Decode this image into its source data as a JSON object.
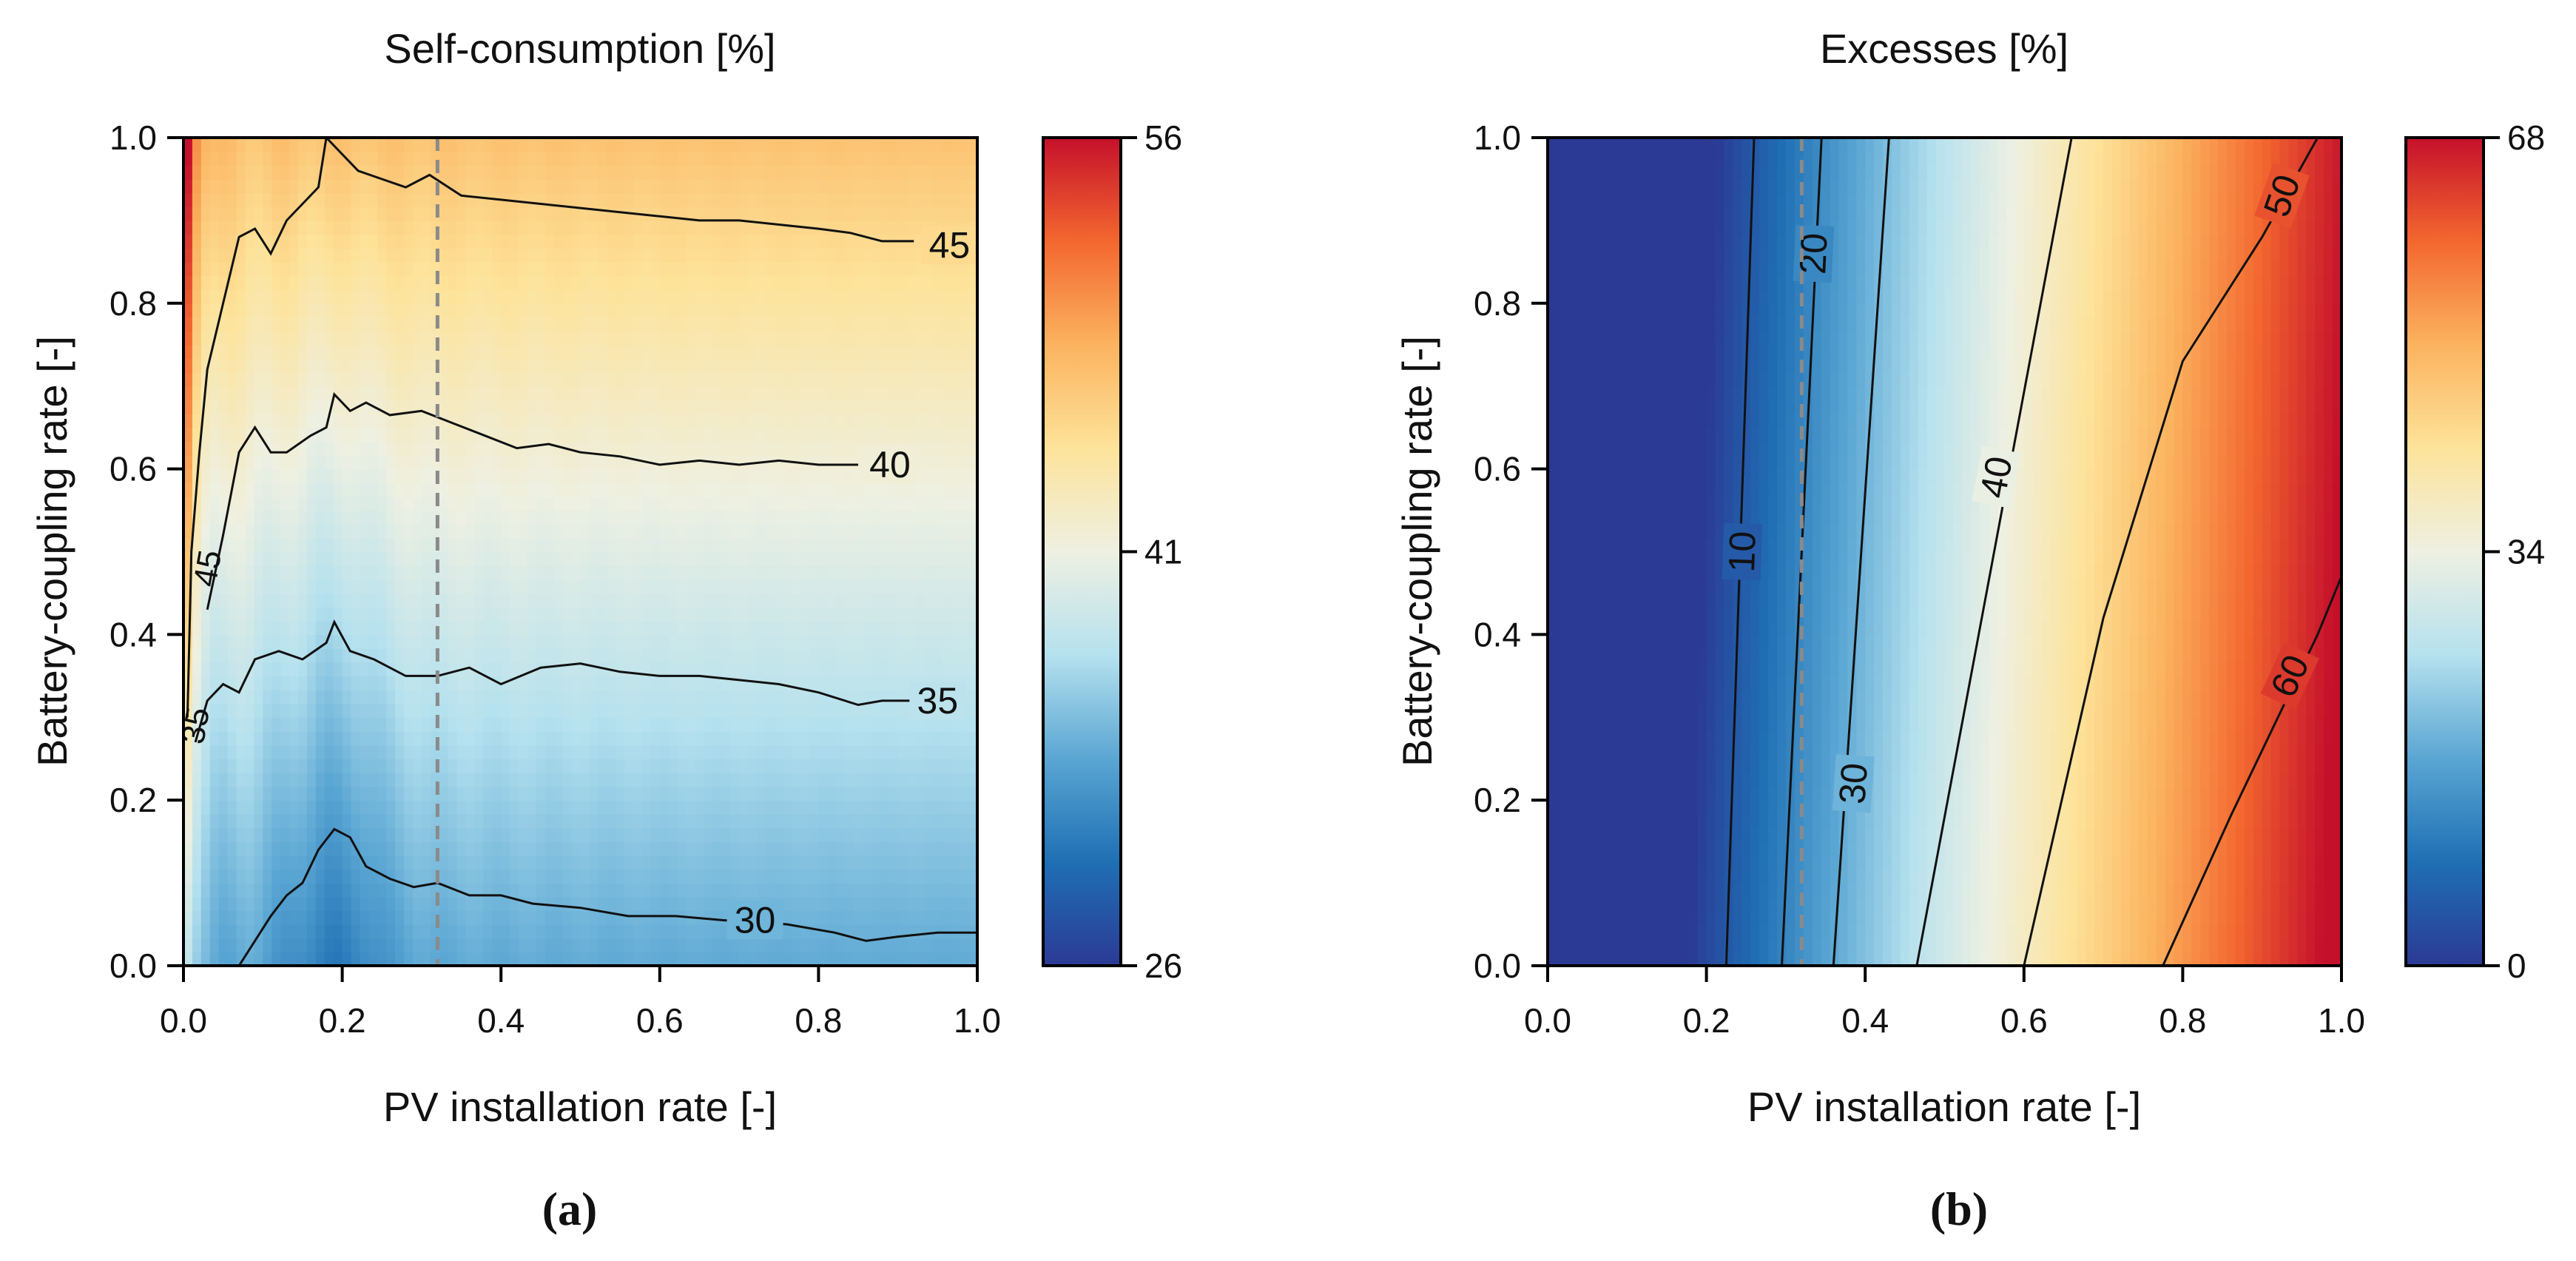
{
  "figure": {
    "panels": [
      "(a)",
      "(b)"
    ]
  },
  "colorscale": [
    "#2b3a95",
    "#1f6fb4",
    "#5aa6d3",
    "#b5e1ee",
    "#eef0e2",
    "#fde39a",
    "#fbb35f",
    "#f3672f",
    "#c5102b"
  ],
  "chart_data": [
    {
      "type": "heatmap",
      "panel": "(a)",
      "title": "Self-consumption [%]",
      "xlabel": "PV installation rate [-]",
      "ylabel": "Battery-coupling rate [-]",
      "xlim": [
        0.0,
        1.0
      ],
      "ylim": [
        0.0,
        1.0
      ],
      "xticks": [
        "0.0",
        "0.2",
        "0.4",
        "0.6",
        "0.8",
        "1.0"
      ],
      "yticks": [
        "0.0",
        "0.2",
        "0.4",
        "0.6",
        "0.8",
        "1.0"
      ],
      "colorbar": {
        "min": 26,
        "max": 56,
        "ticks": [
          "26",
          "41",
          "56"
        ]
      },
      "reference_line_x": 0.32,
      "contours": [
        {
          "level": 30,
          "label": "30",
          "label_at": [
            0.72,
            0.055
          ],
          "points": [
            [
              0.07,
              0.0
            ],
            [
              0.09,
              0.03
            ],
            [
              0.11,
              0.06
            ],
            [
              0.13,
              0.085
            ],
            [
              0.15,
              0.1
            ],
            [
              0.17,
              0.14
            ],
            [
              0.19,
              0.165
            ],
            [
              0.21,
              0.155
            ],
            [
              0.23,
              0.12
            ],
            [
              0.26,
              0.105
            ],
            [
              0.29,
              0.095
            ],
            [
              0.32,
              0.1
            ],
            [
              0.36,
              0.085
            ],
            [
              0.4,
              0.085
            ],
            [
              0.44,
              0.075
            ],
            [
              0.5,
              0.07
            ],
            [
              0.56,
              0.06
            ],
            [
              0.62,
              0.06
            ],
            [
              0.68,
              0.055
            ],
            [
              0.76,
              0.05
            ],
            [
              0.82,
              0.04
            ],
            [
              0.86,
              0.03
            ],
            [
              0.9,
              0.035
            ],
            [
              0.95,
              0.04
            ],
            [
              1.0,
              0.04
            ]
          ]
        },
        {
          "level": 35,
          "label": "35",
          "label_at": [
            0.95,
            0.32
          ],
          "points": [
            [
              0.015,
              0.27
            ],
            [
              0.03,
              0.32
            ],
            [
              0.05,
              0.34
            ],
            [
              0.07,
              0.33
            ],
            [
              0.09,
              0.37
            ],
            [
              0.12,
              0.38
            ],
            [
              0.15,
              0.37
            ],
            [
              0.18,
              0.39
            ],
            [
              0.19,
              0.415
            ],
            [
              0.21,
              0.38
            ],
            [
              0.24,
              0.37
            ],
            [
              0.28,
              0.35
            ],
            [
              0.32,
              0.35
            ],
            [
              0.36,
              0.36
            ],
            [
              0.4,
              0.34
            ],
            [
              0.45,
              0.36
            ],
            [
              0.5,
              0.365
            ],
            [
              0.55,
              0.355
            ],
            [
              0.6,
              0.35
            ],
            [
              0.65,
              0.35
            ],
            [
              0.7,
              0.345
            ],
            [
              0.75,
              0.34
            ],
            [
              0.8,
              0.33
            ],
            [
              0.85,
              0.315
            ],
            [
              0.88,
              0.32
            ],
            [
              0.92,
              0.32
            ]
          ]
        },
        {
          "level": 40,
          "label": "40",
          "label_at": [
            0.89,
            0.605
          ],
          "points": [
            [
              0.03,
              0.43
            ],
            [
              0.05,
              0.52
            ],
            [
              0.07,
              0.62
            ],
            [
              0.09,
              0.65
            ],
            [
              0.11,
              0.62
            ],
            [
              0.13,
              0.62
            ],
            [
              0.16,
              0.64
            ],
            [
              0.18,
              0.65
            ],
            [
              0.19,
              0.69
            ],
            [
              0.21,
              0.67
            ],
            [
              0.23,
              0.68
            ],
            [
              0.26,
              0.665
            ],
            [
              0.3,
              0.67
            ],
            [
              0.34,
              0.655
            ],
            [
              0.38,
              0.64
            ],
            [
              0.42,
              0.625
            ],
            [
              0.46,
              0.63
            ],
            [
              0.5,
              0.62
            ],
            [
              0.55,
              0.615
            ],
            [
              0.6,
              0.605
            ],
            [
              0.65,
              0.61
            ],
            [
              0.7,
              0.605
            ],
            [
              0.75,
              0.61
            ],
            [
              0.8,
              0.605
            ],
            [
              0.85,
              0.605
            ]
          ]
        },
        {
          "level": 45,
          "label": "45",
          "label_at": [
            0.965,
            0.87
          ],
          "points": [
            [
              0.005,
              0.3
            ],
            [
              0.01,
              0.5
            ],
            [
              0.02,
              0.62
            ],
            [
              0.03,
              0.72
            ],
            [
              0.05,
              0.8
            ],
            [
              0.07,
              0.88
            ],
            [
              0.09,
              0.89
            ],
            [
              0.11,
              0.86
            ],
            [
              0.13,
              0.9
            ],
            [
              0.15,
              0.92
            ],
            [
              0.17,
              0.94
            ],
            [
              0.18,
              1.0
            ],
            [
              0.2,
              0.98
            ],
            [
              0.22,
              0.96
            ],
            [
              0.25,
              0.95
            ],
            [
              0.28,
              0.94
            ],
            [
              0.31,
              0.955
            ],
            [
              0.35,
              0.93
            ],
            [
              0.4,
              0.925
            ],
            [
              0.45,
              0.92
            ],
            [
              0.5,
              0.915
            ],
            [
              0.55,
              0.91
            ],
            [
              0.6,
              0.905
            ],
            [
              0.65,
              0.9
            ],
            [
              0.7,
              0.9
            ],
            [
              0.75,
              0.895
            ],
            [
              0.8,
              0.89
            ],
            [
              0.84,
              0.885
            ],
            [
              0.88,
              0.875
            ],
            [
              0.92,
              0.875
            ]
          ]
        }
      ],
      "inline_labels": [
        {
          "text": "45",
          "at": [
            0.03,
            0.48
          ]
        },
        {
          "text": "35",
          "at": [
            0.015,
            0.29
          ]
        }
      ]
    },
    {
      "type": "heatmap",
      "panel": "(b)",
      "title": "Excesses [%]",
      "xlabel": "PV installation rate [-]",
      "ylabel": "Battery-coupling rate [-]",
      "xlim": [
        0.0,
        1.0
      ],
      "ylim": [
        0.0,
        1.0
      ],
      "xticks": [
        "0.0",
        "0.2",
        "0.4",
        "0.6",
        "0.8",
        "1.0"
      ],
      "yticks": [
        "0.0",
        "0.2",
        "0.4",
        "0.6",
        "0.8",
        "1.0"
      ],
      "colorbar": {
        "min": 0,
        "max": 68,
        "ticks": [
          "0",
          "34",
          "68"
        ]
      },
      "reference_line_x": 0.32,
      "contours": [
        {
          "level": 10,
          "label": "10",
          "label_at": [
            0.245,
            0.5
          ],
          "points": [
            [
              0.225,
              0.0
            ],
            [
              0.26,
              1.0
            ]
          ]
        },
        {
          "level": 20,
          "label": "20",
          "label_at": [
            0.335,
            0.86
          ],
          "points": [
            [
              0.295,
              0.0
            ],
            [
              0.345,
              1.0
            ]
          ]
        },
        {
          "level": 30,
          "label": "30",
          "label_at": [
            0.385,
            0.22
          ],
          "points": [
            [
              0.36,
              0.0
            ],
            [
              0.43,
              1.0
            ]
          ]
        },
        {
          "level": 40,
          "label": "40",
          "label_at": [
            0.565,
            0.59
          ],
          "points": [
            [
              0.465,
              0.0
            ],
            [
              0.66,
              1.0
            ]
          ]
        },
        {
          "level": 50,
          "label": "50",
          "label_at": [
            0.925,
            0.93
          ],
          "points": [
            [
              0.6,
              0.0
            ],
            [
              0.7,
              0.42
            ],
            [
              0.8,
              0.73
            ],
            [
              0.9,
              0.88
            ],
            [
              0.97,
              1.0
            ]
          ]
        },
        {
          "level": 60,
          "label": "60",
          "label_at": [
            0.935,
            0.35
          ],
          "points": [
            [
              0.775,
              0.0
            ],
            [
              0.86,
              0.18
            ],
            [
              0.93,
              0.32
            ],
            [
              0.97,
              0.4
            ],
            [
              1.0,
              0.47
            ]
          ]
        }
      ]
    }
  ]
}
